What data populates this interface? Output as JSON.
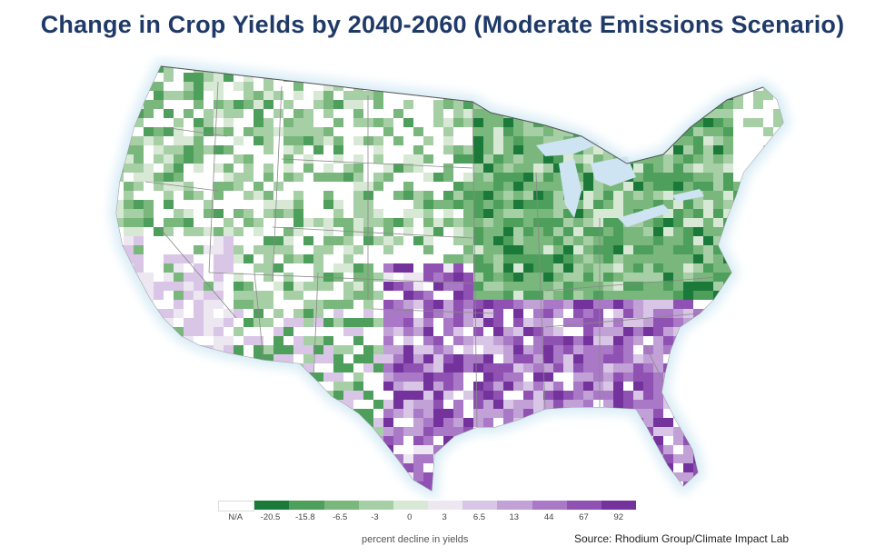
{
  "title": "Change in Crop Yields by 2040-2060 (Moderate Emissions Scenario)",
  "legend": {
    "caption": "percent decline in yields",
    "bins": [
      {
        "label": "N/A",
        "color": "#ffffff"
      },
      {
        "label": "-20.5",
        "color": "#1b7a3a"
      },
      {
        "label": "-15.8",
        "color": "#4e9e5c"
      },
      {
        "label": "-6.5",
        "color": "#79b77d"
      },
      {
        "label": "-3",
        "color": "#a7cfa6"
      },
      {
        "label": "0",
        "color": "#d7e9d4"
      },
      {
        "label": "3",
        "color": "#ede7f2"
      },
      {
        "label": "6.5",
        "color": "#d9c6e6"
      },
      {
        "label": "13",
        "color": "#c2a1d7"
      },
      {
        "label": "44",
        "color": "#a978c6"
      },
      {
        "label": "67",
        "color": "#8f52b3"
      },
      {
        "label": "92",
        "color": "#74329d"
      }
    ]
  },
  "source": "Source: Rhodium Group/Climate Impact Lab",
  "map": {
    "region": "contiguous United States",
    "colors": {
      "border": "#888888",
      "water_halo": "#d8ecf6",
      "lakes": "#cfe4f2"
    }
  }
}
